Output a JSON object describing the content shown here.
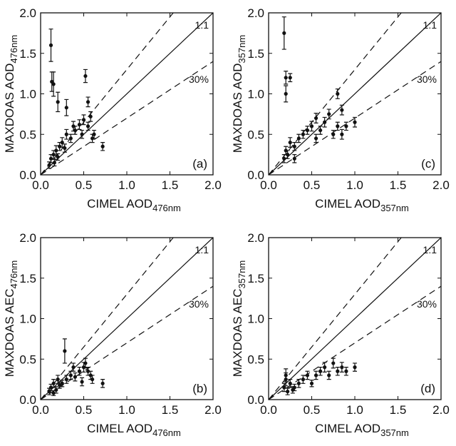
{
  "chart_data": [
    {
      "type": "scatter",
      "panel_label": "(a)",
      "xlabel": "CIMEL AOD",
      "xlabel_sub": "476nm",
      "ylabel": "MAXDOAS AOD",
      "ylabel_sub": "476nm",
      "xlim": [
        0,
        2
      ],
      "ylim": [
        0,
        2
      ],
      "xticks": [
        {
          "value": 0,
          "label": "0.0"
        },
        0.5,
        {
          "value": 1,
          "label": "1.0"
        },
        1.5,
        {
          "value": 2,
          "label": "2.0"
        }
      ],
      "yticks": [
        {
          "value": 0,
          "label": "0.0"
        },
        0.5,
        {
          "value": 1,
          "label": "1.0"
        },
        1.5,
        {
          "value": 2,
          "label": "2.0"
        }
      ],
      "reference_lines": [
        {
          "slope": 1,
          "style": "solid",
          "label": "1:1"
        },
        {
          "slope": 1.3,
          "style": "dashed"
        },
        {
          "slope": 0.7,
          "style": "dashed",
          "label": "30%"
        }
      ],
      "color": "#111111",
      "x": [
        0.12,
        0.13,
        0.15,
        0.2,
        0.3,
        0.52,
        0.12,
        0.15,
        0.18,
        0.2,
        0.22,
        0.25,
        0.28,
        0.3,
        0.35,
        0.38,
        0.4,
        0.45,
        0.48,
        0.5,
        0.55,
        0.55,
        0.58,
        0.6,
        0.62,
        0.72,
        0.1,
        0.16
      ],
      "y": [
        1.6,
        1.15,
        1.12,
        0.9,
        0.83,
        1.22,
        0.2,
        0.25,
        0.3,
        0.22,
        0.35,
        0.4,
        0.33,
        0.5,
        0.45,
        0.6,
        0.55,
        0.62,
        0.5,
        0.68,
        0.6,
        0.9,
        0.72,
        0.45,
        0.5,
        0.35,
        0.12,
        0.15
      ],
      "yerr": [
        0.2,
        0.12,
        0.15,
        0.12,
        0.1,
        0.08,
        0.05,
        0.05,
        0.06,
        0.04,
        0.05,
        0.06,
        0.05,
        0.06,
        0.05,
        0.06,
        0.05,
        0.06,
        0.05,
        0.06,
        0.05,
        0.06,
        0.06,
        0.05,
        0.05,
        0.05,
        0.04,
        0.04
      ]
    },
    {
      "type": "scatter",
      "panel_label": "(c)",
      "xlabel": "CIMEL AOD",
      "xlabel_sub": "357nm",
      "ylabel": "MAXDOAS AOD",
      "ylabel_sub": "357nm",
      "xlim": [
        0,
        2
      ],
      "ylim": [
        0,
        2
      ],
      "xticks": [
        {
          "value": 0,
          "label": "0.0"
        },
        0.5,
        {
          "value": 1,
          "label": "1.0"
        },
        1.5,
        {
          "value": 2,
          "label": "2.0"
        }
      ],
      "yticks": [
        {
          "value": 0,
          "label": "0.0"
        },
        0.5,
        {
          "value": 1,
          "label": "1.0"
        },
        1.5,
        {
          "value": 2,
          "label": "2.0"
        }
      ],
      "reference_lines": [
        {
          "slope": 1,
          "style": "solid",
          "label": "1:1"
        },
        {
          "slope": 1.3,
          "style": "dashed"
        },
        {
          "slope": 0.7,
          "style": "dashed",
          "label": "30%"
        }
      ],
      "color": "#111111",
      "x": [
        0.18,
        0.2,
        0.25,
        0.2,
        0.18,
        0.2,
        0.22,
        0.25,
        0.3,
        0.35,
        0.4,
        0.45,
        0.5,
        0.55,
        0.6,
        0.65,
        0.7,
        0.75,
        0.8,
        0.8,
        0.85,
        0.85,
        0.9,
        1.0,
        0.3,
        0.55
      ],
      "y": [
        1.75,
        1.2,
        1.2,
        1.0,
        0.2,
        0.3,
        0.25,
        0.4,
        0.35,
        0.45,
        0.5,
        0.55,
        0.6,
        0.7,
        0.55,
        0.65,
        0.75,
        0.5,
        1.0,
        0.6,
        0.8,
        0.5,
        0.6,
        0.65,
        0.2,
        0.45
      ],
      "yerr": [
        0.2,
        0.08,
        0.05,
        0.1,
        0.05,
        0.05,
        0.05,
        0.06,
        0.05,
        0.05,
        0.05,
        0.05,
        0.06,
        0.06,
        0.05,
        0.06,
        0.06,
        0.05,
        0.06,
        0.05,
        0.06,
        0.06,
        0.05,
        0.06,
        0.05,
        0.05
      ]
    },
    {
      "type": "scatter",
      "panel_label": "(b)",
      "xlabel": "CIMEL AOD",
      "xlabel_sub": "476nm",
      "ylabel": "MAXDOAS AEC",
      "ylabel_sub": "476nm",
      "xlim": [
        0,
        2
      ],
      "ylim": [
        0,
        2
      ],
      "xticks": [
        {
          "value": 0,
          "label": "0.0"
        },
        0.5,
        {
          "value": 1,
          "label": "1.0"
        },
        1.5,
        {
          "value": 2,
          "label": "2.0"
        }
      ],
      "yticks": [
        {
          "value": 0,
          "label": "0.0"
        },
        0.5,
        {
          "value": 1,
          "label": "1.0"
        },
        1.5,
        {
          "value": 2,
          "label": "2.0"
        }
      ],
      "reference_lines": [
        {
          "slope": 1,
          "style": "solid",
          "label": "1:1"
        },
        {
          "slope": 1.3,
          "style": "dashed"
        },
        {
          "slope": 0.7,
          "style": "dashed",
          "label": "30%"
        }
      ],
      "color": "#111111",
      "x": [
        0.1,
        0.12,
        0.15,
        0.18,
        0.2,
        0.22,
        0.25,
        0.28,
        0.3,
        0.35,
        0.4,
        0.45,
        0.5,
        0.52,
        0.55,
        0.58,
        0.6,
        0.72,
        0.15,
        0.38,
        0.48
      ],
      "y": [
        0.1,
        0.15,
        0.2,
        0.12,
        0.25,
        0.18,
        0.2,
        0.6,
        0.25,
        0.3,
        0.28,
        0.35,
        0.4,
        0.45,
        0.35,
        0.3,
        0.25,
        0.2,
        0.08,
        0.4,
        0.22
      ],
      "yerr": [
        0.04,
        0.04,
        0.05,
        0.04,
        0.05,
        0.04,
        0.04,
        0.15,
        0.05,
        0.05,
        0.05,
        0.05,
        0.06,
        0.06,
        0.05,
        0.05,
        0.05,
        0.05,
        0.03,
        0.05,
        0.05
      ]
    },
    {
      "type": "scatter",
      "panel_label": "(d)",
      "xlabel": "CIMEL AOD",
      "xlabel_sub": "357nm",
      "ylabel": "MAXDOAS AEC",
      "ylabel_sub": "357nm",
      "xlim": [
        0,
        2
      ],
      "ylim": [
        0,
        2
      ],
      "xticks": [
        {
          "value": 0,
          "label": "0.0"
        },
        0.5,
        {
          "value": 1,
          "label": "1.0"
        },
        1.5,
        {
          "value": 2,
          "label": "2.0"
        }
      ],
      "yticks": [
        {
          "value": 0,
          "label": "0.0"
        },
        0.5,
        {
          "value": 1,
          "label": "1.0"
        },
        1.5,
        {
          "value": 2,
          "label": "2.0"
        }
      ],
      "reference_lines": [
        {
          "slope": 1,
          "style": "solid",
          "label": "1:1"
        },
        {
          "slope": 1.3,
          "style": "dashed"
        },
        {
          "slope": 0.7,
          "style": "dashed",
          "label": "30%"
        }
      ],
      "color": "#111111",
      "x": [
        0.18,
        0.2,
        0.22,
        0.25,
        0.3,
        0.35,
        0.4,
        0.45,
        0.5,
        0.55,
        0.6,
        0.65,
        0.7,
        0.75,
        0.8,
        0.85,
        0.9,
        1.0,
        0.2,
        0.28
      ],
      "y": [
        0.15,
        0.25,
        0.1,
        0.2,
        0.15,
        0.2,
        0.25,
        0.3,
        0.2,
        0.3,
        0.35,
        0.4,
        0.3,
        0.45,
        0.35,
        0.4,
        0.35,
        0.4,
        0.3,
        0.12
      ],
      "yerr": [
        0.05,
        0.08,
        0.04,
        0.05,
        0.04,
        0.05,
        0.05,
        0.05,
        0.04,
        0.05,
        0.05,
        0.06,
        0.05,
        0.06,
        0.05,
        0.06,
        0.05,
        0.05,
        0.08,
        0.04
      ]
    }
  ]
}
